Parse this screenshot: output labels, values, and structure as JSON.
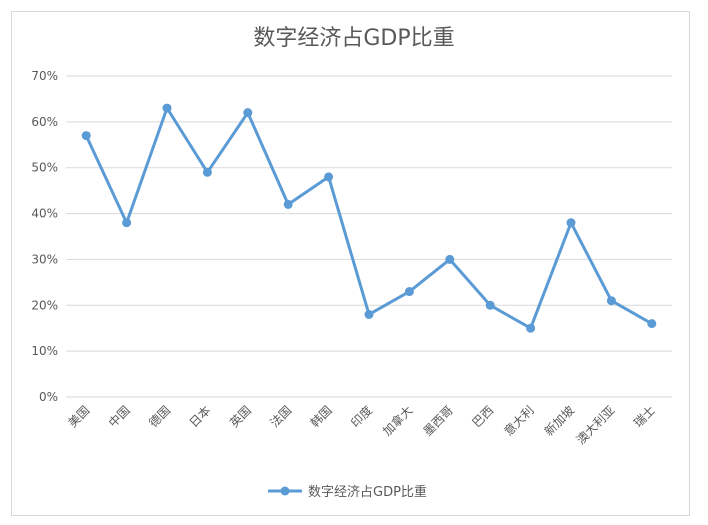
{
  "chart_data": {
    "type": "line",
    "title": "数字经济占GDP比重",
    "categories": [
      "美国",
      "中国",
      "德国",
      "日本",
      "英国",
      "法国",
      "韩国",
      "印度",
      "加拿大",
      "墨西哥",
      "巴西",
      "意大利",
      "新加坡",
      "澳大利亚",
      "瑞士"
    ],
    "series": [
      {
        "name": "数字经济占GDP比重",
        "values": [
          57,
          38,
          63,
          49,
          62,
          42,
          48,
          18,
          23,
          30,
          20,
          15,
          38,
          21,
          16
        ]
      }
    ],
    "y_ticks": [
      "0%",
      "10%",
      "20%",
      "30%",
      "40%",
      "50%",
      "60%",
      "70%"
    ],
    "ylim": [
      0,
      70
    ],
    "y_unit": "%",
    "grid": true,
    "legend_position": "bottom",
    "colors": {
      "series": "#5b9bd5",
      "grid": "#d9d9d9",
      "text": "#595959"
    }
  }
}
